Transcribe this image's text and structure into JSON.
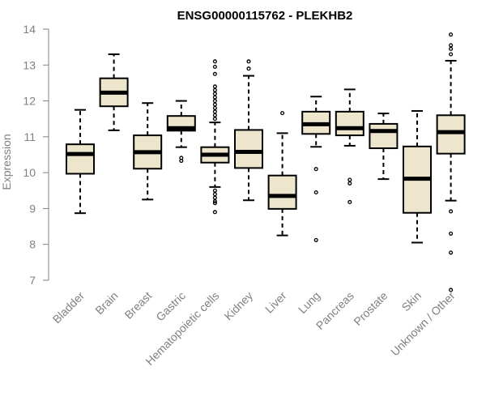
{
  "chart_data": {
    "type": "boxplot",
    "title": "ENSG00000115762 - PLEKHB2",
    "ylabel": "Expression",
    "xlabel": "",
    "ylim": [
      6.6,
      14.2
    ],
    "yticks": [
      7,
      8,
      9,
      10,
      11,
      12,
      13,
      14
    ],
    "colors": {
      "box_fill": "#ede6cd",
      "stroke": "#000000",
      "axis": "#808080"
    },
    "categories": [
      "Bladder",
      "Brain",
      "Breast",
      "Gastric",
      "Hematopoietic cells",
      "Kidney",
      "Liver",
      "Lung",
      "Pancreas",
      "Prostate",
      "Skin",
      "Unknown / Other"
    ],
    "boxes": [
      {
        "label": "Bladder",
        "min": 8.87,
        "q1": 9.97,
        "median": 10.52,
        "q3": 10.79,
        "max": 11.75,
        "outliers": []
      },
      {
        "label": "Brain",
        "min": 11.18,
        "q1": 11.85,
        "median": 12.23,
        "q3": 12.63,
        "max": 13.3,
        "outliers": []
      },
      {
        "label": "Breast",
        "min": 9.25,
        "q1": 10.11,
        "median": 10.57,
        "q3": 11.04,
        "max": 11.94,
        "outliers": []
      },
      {
        "label": "Gastric",
        "min": 10.71,
        "q1": 11.17,
        "median": 11.24,
        "q3": 11.58,
        "max": 12.0,
        "outliers": [
          10.41,
          10.33
        ]
      },
      {
        "label": "Hematopoietic cells",
        "min": 9.6,
        "q1": 10.28,
        "median": 10.5,
        "q3": 10.71,
        "max": 11.4,
        "outliers": [
          13.1,
          12.95,
          12.75,
          12.4,
          12.3,
          12.2,
          12.1,
          12.0,
          11.9,
          11.8,
          11.7,
          11.6,
          11.5,
          9.5,
          9.4,
          9.3,
          9.2,
          9.15,
          8.9
        ]
      },
      {
        "label": "Kidney",
        "min": 9.23,
        "q1": 10.13,
        "median": 10.58,
        "q3": 11.19,
        "max": 12.7,
        "outliers": [
          13.1,
          12.9
        ]
      },
      {
        "label": "Liver",
        "min": 8.25,
        "q1": 8.99,
        "median": 9.35,
        "q3": 9.92,
        "max": 11.1,
        "outliers": [
          11.66
        ]
      },
      {
        "label": "Lung",
        "min": 10.72,
        "q1": 11.08,
        "median": 11.35,
        "q3": 11.7,
        "max": 12.12,
        "outliers": [
          10.1,
          9.45,
          8.12
        ]
      },
      {
        "label": "Pancreas",
        "min": 10.75,
        "q1": 11.04,
        "median": 11.24,
        "q3": 11.7,
        "max": 12.32,
        "outliers": [
          9.8,
          9.7,
          9.18
        ]
      },
      {
        "label": "Prostate",
        "min": 9.82,
        "q1": 10.68,
        "median": 11.16,
        "q3": 11.36,
        "max": 11.65,
        "outliers": []
      },
      {
        "label": "Skin",
        "min": 8.05,
        "q1": 8.88,
        "median": 9.83,
        "q3": 10.73,
        "max": 11.72,
        "outliers": []
      },
      {
        "label": "Unknown / Other",
        "min": 9.22,
        "q1": 10.53,
        "median": 11.13,
        "q3": 11.6,
        "max": 13.12,
        "outliers": [
          13.85,
          13.55,
          13.45,
          13.3,
          8.92,
          8.3,
          7.77,
          6.73
        ]
      }
    ]
  }
}
